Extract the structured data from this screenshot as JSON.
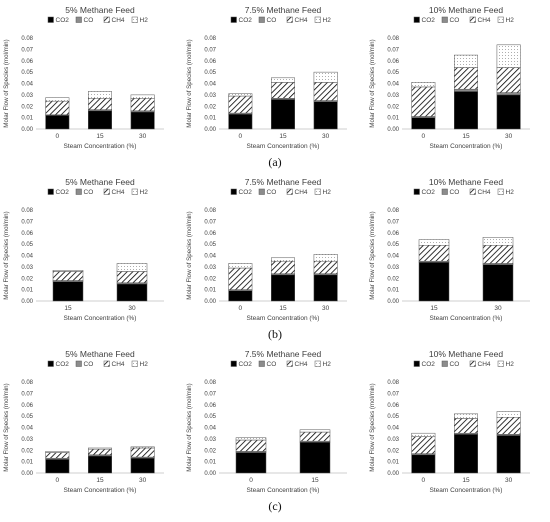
{
  "figure": {
    "row_labels": [
      "(a)",
      "(b)",
      "(c)"
    ]
  },
  "colors": {
    "co2": "#000000",
    "co": "#8c8c8c",
    "ch4_bg": "#ffffff",
    "h2": "#ffffff",
    "outline": "#555555",
    "axis": "#bfbfbf",
    "text": "#404040"
  },
  "chart_data": [
    {
      "type": "bar",
      "stacked": true,
      "row": "a",
      "title": "5% Methane Feed",
      "xlabel": "Steam Concentration (%)",
      "ylabel": "Molar Flow of Species (mol/min)",
      "categories": [
        "0",
        "15",
        "30"
      ],
      "ylim": [
        0,
        0.08
      ],
      "yticks": [
        "0.00",
        "0.01",
        "0.02",
        "0.03",
        "0.04",
        "0.05",
        "0.06",
        "0.07",
        "0.08"
      ],
      "legend": "top",
      "series": [
        {
          "name": "CO2",
          "values": [
            0.012,
            0.016,
            0.015
          ]
        },
        {
          "name": "CO",
          "values": [
            0.0005,
            0.001,
            0.001
          ]
        },
        {
          "name": "CH4",
          "values": [
            0.012,
            0.01,
            0.011
          ]
        },
        {
          "name": "H2",
          "values": [
            0.003,
            0.006,
            0.003
          ]
        }
      ]
    },
    {
      "type": "bar",
      "stacked": true,
      "row": "a",
      "title": "7.5% Methane Feed",
      "xlabel": "Steam Concentration (%)",
      "ylabel": "Molar Flow of Species (mol/min)",
      "categories": [
        "0",
        "15",
        "30"
      ],
      "ylim": [
        0,
        0.08
      ],
      "yticks": [
        "0.00",
        "0.01",
        "0.02",
        "0.03",
        "0.04",
        "0.05",
        "0.06",
        "0.07",
        "0.08"
      ],
      "legend": "top",
      "series": [
        {
          "name": "CO2",
          "values": [
            0.013,
            0.026,
            0.024
          ]
        },
        {
          "name": "CO",
          "values": [
            0.001,
            0.001,
            0.001
          ]
        },
        {
          "name": "CH4",
          "values": [
            0.015,
            0.014,
            0.016
          ]
        },
        {
          "name": "H2",
          "values": [
            0.002,
            0.004,
            0.009
          ]
        }
      ]
    },
    {
      "type": "bar",
      "stacked": true,
      "row": "a",
      "title": "10% Methane Feed",
      "xlabel": "Steam Concentration (%)",
      "ylabel": "Molar Flow of Species (mol/min)",
      "categories": [
        "0",
        "15",
        "30"
      ],
      "ylim": [
        0,
        0.08
      ],
      "yticks": [
        "0.00",
        "0.01",
        "0.02",
        "0.03",
        "0.04",
        "0.05",
        "0.06",
        "0.07",
        "0.08"
      ],
      "legend": "top",
      "series": [
        {
          "name": "CO2",
          "values": [
            0.01,
            0.033,
            0.03
          ]
        },
        {
          "name": "CO",
          "values": [
            0.001,
            0.002,
            0.002
          ]
        },
        {
          "name": "CH4",
          "values": [
            0.026,
            0.019,
            0.022
          ]
        },
        {
          "name": "H2",
          "values": [
            0.004,
            0.011,
            0.02
          ]
        }
      ]
    },
    {
      "type": "bar",
      "stacked": true,
      "row": "b",
      "title": "5% Methane Feed",
      "xlabel": "Steam Concentration (%)",
      "ylabel": "Molar Flow of Species (mol/min)",
      "categories": [
        "15",
        "30"
      ],
      "ylim": [
        0,
        0.08
      ],
      "yticks": [
        "0.00",
        "0.01",
        "0.02",
        "0.03",
        "0.04",
        "0.05",
        "0.06",
        "0.07",
        "0.08"
      ],
      "legend": "top",
      "series": [
        {
          "name": "CO2",
          "values": [
            0.017,
            0.015
          ]
        },
        {
          "name": "CO",
          "values": [
            0.001,
            0.001
          ]
        },
        {
          "name": "CH4",
          "values": [
            0.008,
            0.01
          ]
        },
        {
          "name": "H2",
          "values": [
            0.001,
            0.007
          ]
        }
      ]
    },
    {
      "type": "bar",
      "stacked": true,
      "row": "b",
      "title": "7.5% Methane Feed",
      "xlabel": "Steam Concentration (%)",
      "ylabel": "Molar Flow of Species (mol/min)",
      "categories": [
        "0",
        "15",
        "30"
      ],
      "ylim": [
        0,
        0.08
      ],
      "yticks": [
        "0.00",
        "0.01",
        "0.02",
        "0.03",
        "0.04",
        "0.05",
        "0.06",
        "0.07",
        "0.08"
      ],
      "legend": "top",
      "series": [
        {
          "name": "CO2",
          "values": [
            0.009,
            0.023,
            0.023
          ]
        },
        {
          "name": "CO",
          "values": [
            0.001,
            0.001,
            0.001
          ]
        },
        {
          "name": "CH4",
          "values": [
            0.019,
            0.011,
            0.011
          ]
        },
        {
          "name": "H2",
          "values": [
            0.004,
            0.003,
            0.006
          ]
        }
      ]
    },
    {
      "type": "bar",
      "stacked": true,
      "row": "b",
      "title": "10% Methane Feed",
      "xlabel": "Steam Concentration (%)",
      "ylabel": "Molar Flow of Species (mol/min)",
      "categories": [
        "15",
        "30"
      ],
      "ylim": [
        0,
        0.08
      ],
      "yticks": [
        "0.00",
        "0.01",
        "0.02",
        "0.03",
        "0.04",
        "0.05",
        "0.06",
        "0.07",
        "0.08"
      ],
      "legend": "top",
      "series": [
        {
          "name": "CO2",
          "values": [
            0.034,
            0.032
          ]
        },
        {
          "name": "CO",
          "values": [
            0.001,
            0.001
          ]
        },
        {
          "name": "CH4",
          "values": [
            0.014,
            0.016
          ]
        },
        {
          "name": "H2",
          "values": [
            0.005,
            0.007
          ]
        }
      ]
    },
    {
      "type": "bar",
      "stacked": true,
      "row": "c",
      "title": "5% Methane Feed",
      "xlabel": "Steam Concentration (%)",
      "ylabel": "Molar Flow of Species (mol/min)",
      "categories": [
        "0",
        "15",
        "30"
      ],
      "ylim": [
        0,
        0.08
      ],
      "yticks": [
        "0.00",
        "0.01",
        "0.02",
        "0.03",
        "0.04",
        "0.05",
        "0.06",
        "0.07",
        "0.08"
      ],
      "legend": "top",
      "series": [
        {
          "name": "CO2",
          "values": [
            0.012,
            0.015,
            0.013
          ]
        },
        {
          "name": "CO",
          "values": [
            0.001,
            0.001,
            0.001
          ]
        },
        {
          "name": "CH4",
          "values": [
            0.005,
            0.005,
            0.008
          ]
        },
        {
          "name": "H2",
          "values": [
            0.001,
            0.001,
            0.001
          ]
        }
      ]
    },
    {
      "type": "bar",
      "stacked": true,
      "row": "c",
      "title": "7.5% Methane Feed",
      "xlabel": "Steam Concentration (%)",
      "ylabel": "Molar Flow of Species (mol/min)",
      "categories": [
        "0",
        "15"
      ],
      "ylim": [
        0,
        0.08
      ],
      "yticks": [
        "0.00",
        "0.01",
        "0.02",
        "0.03",
        "0.04",
        "0.05",
        "0.06",
        "0.07",
        "0.08"
      ],
      "legend": "top",
      "series": [
        {
          "name": "CO2",
          "values": [
            0.018,
            0.027
          ]
        },
        {
          "name": "CO",
          "values": [
            0.001,
            0.001
          ]
        },
        {
          "name": "CH4",
          "values": [
            0.01,
            0.008
          ]
        },
        {
          "name": "H2",
          "values": [
            0.002,
            0.002
          ]
        }
      ]
    },
    {
      "type": "bar",
      "stacked": true,
      "row": "c",
      "title": "10% Methane Feed",
      "xlabel": "Steam Concentration (%)",
      "ylabel": "Molar Flow of Species (mol/min)",
      "categories": [
        "0",
        "15",
        "30"
      ],
      "ylim": [
        0,
        0.08
      ],
      "yticks": [
        "0.00",
        "0.01",
        "0.02",
        "0.03",
        "0.04",
        "0.05",
        "0.06",
        "0.07",
        "0.08"
      ],
      "legend": "top",
      "series": [
        {
          "name": "CO2",
          "values": [
            0.016,
            0.034,
            0.033
          ]
        },
        {
          "name": "CO",
          "values": [
            0.001,
            0.001,
            0.001
          ]
        },
        {
          "name": "CH4",
          "values": [
            0.015,
            0.013,
            0.015
          ]
        },
        {
          "name": "H2",
          "values": [
            0.003,
            0.004,
            0.005
          ]
        }
      ]
    }
  ]
}
